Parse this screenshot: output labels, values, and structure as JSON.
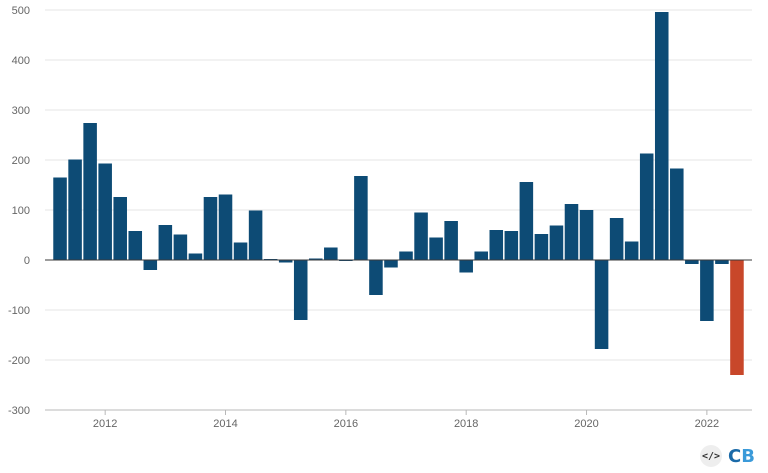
{
  "colors": {
    "bar_positive": "#0d4b75",
    "bar_latest": "#c8472a",
    "grid": "#e5e5e5",
    "axis": "#3a3a3a"
  },
  "logo": {
    "text": "CB",
    "embed_icon": "code-embed-icon"
  },
  "chart_data": {
    "type": "bar",
    "title": "",
    "xlabel": "",
    "ylabel": "",
    "ylim": [
      -300,
      500
    ],
    "yticks": [
      -300,
      -200,
      -100,
      0,
      100,
      200,
      300,
      400,
      500
    ],
    "xlim": [
      2011.0,
      2022.75
    ],
    "xticks": [
      2012,
      2014,
      2016,
      2018,
      2020,
      2022
    ],
    "grid": true,
    "highlight": "last bar in orange",
    "x": [
      2011.25,
      2011.5,
      2011.75,
      2012.0,
      2012.25,
      2012.5,
      2012.75,
      2013.0,
      2013.25,
      2013.5,
      2013.75,
      2014.0,
      2014.25,
      2014.5,
      2014.75,
      2015.0,
      2015.25,
      2015.5,
      2015.75,
      2016.0,
      2016.25,
      2016.5,
      2016.75,
      2017.0,
      2017.25,
      2017.5,
      2017.75,
      2018.0,
      2018.25,
      2018.5,
      2018.75,
      2019.0,
      2019.25,
      2019.5,
      2019.75,
      2020.0,
      2020.25,
      2020.5,
      2020.75,
      2021.0,
      2021.25,
      2021.5,
      2021.75,
      2022.0,
      2022.25,
      2022.5
    ],
    "values": [
      165,
      201,
      274,
      193,
      126,
      58,
      -20,
      70,
      51,
      13,
      126,
      131,
      35,
      99,
      2,
      -5,
      -120,
      3,
      25,
      -2,
      168,
      -70,
      -15,
      17,
      95,
      45,
      78,
      -25,
      17,
      60,
      58,
      156,
      52,
      69,
      112,
      100,
      -178,
      84,
      37,
      213,
      496,
      183,
      -8,
      -122,
      -8,
      -230
    ]
  }
}
